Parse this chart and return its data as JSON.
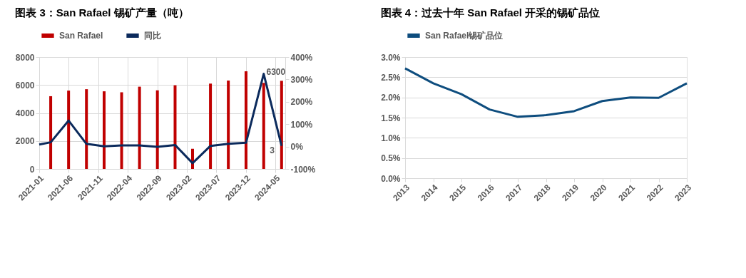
{
  "chart_data": [
    {
      "type": "bar",
      "title": "图表 3：San Rafael 锡矿产量（吨）",
      "xlim": [
        "2021-01-01",
        "2024-06-20"
      ],
      "xticks": [
        "2021-01",
        "2021-06",
        "2021-11",
        "2022-04",
        "2022-09",
        "2023-02",
        "2023-07",
        "2023-12",
        "2024-05"
      ],
      "series": [
        {
          "name": "San Rafael",
          "type": "bar",
          "color": "#c00000",
          "x": [
            "2021-03",
            "2021-06",
            "2021-09",
            "2021-12",
            "2022-03",
            "2022-06",
            "2022-09",
            "2022-12",
            "2023-03",
            "2023-06",
            "2023-09",
            "2023-12",
            "2024-03",
            "2024-06"
          ],
          "values": [
            5200,
            5600,
            5700,
            5550,
            5480,
            5880,
            5620,
            5980,
            1440,
            6100,
            6320,
            6980,
            6150,
            6300
          ],
          "value_labels": [
            null,
            null,
            null,
            null,
            null,
            null,
            null,
            null,
            null,
            null,
            null,
            null,
            null,
            "6300"
          ]
        },
        {
          "name": "同比",
          "type": "line",
          "axis": "y2",
          "color": "#0b2a5c",
          "x": [
            "2021-01",
            "2021-03",
            "2021-06",
            "2021-09",
            "2021-12",
            "2022-03",
            "2022-06",
            "2022-09",
            "2022-12",
            "2023-03",
            "2023-06",
            "2023-09",
            "2023-12",
            "2024-03",
            "2024-06"
          ],
          "values": [
            9,
            19,
            116,
            12,
            1,
            5,
            5,
            -1,
            7,
            -74,
            3,
            12,
            17,
            325,
            3
          ],
          "value_labels": [
            null,
            null,
            null,
            null,
            null,
            null,
            null,
            null,
            null,
            null,
            null,
            null,
            null,
            null,
            "3"
          ]
        }
      ],
      "ylim": [
        0,
        8000
      ],
      "yticks": [
        0,
        2000,
        4000,
        6000,
        8000
      ],
      "y2lim": [
        -100,
        400
      ],
      "y2ticks": [
        {
          "value": -100,
          "label": "-100%"
        },
        {
          "value": 0,
          "label": "0%"
        },
        {
          "value": 100,
          "label": "100%"
        },
        {
          "value": 200,
          "label": "200%"
        },
        {
          "value": 300,
          "label": "300%"
        },
        {
          "value": 400,
          "label": "400%"
        }
      ],
      "grid": true,
      "legend": "top"
    },
    {
      "type": "line",
      "title": "图表 4：过去十年 San Rafael 开采的锡矿品位",
      "categories": [
        "2013",
        "2014",
        "2015",
        "2016",
        "2017",
        "2018",
        "2019",
        "2020",
        "2021",
        "2022",
        "2023"
      ],
      "series": [
        {
          "name": "San Rafael锡矿品位",
          "color": "#0e4d7e",
          "values": [
            2.72,
            2.35,
            2.08,
            1.7,
            1.52,
            1.56,
            1.66,
            1.91,
            2.0,
            1.99,
            2.35
          ]
        }
      ],
      "ylim": [
        0,
        3
      ],
      "yticks": [
        {
          "value": 0,
          "label": "0.0%"
        },
        {
          "value": 0.5,
          "label": "0.5%"
        },
        {
          "value": 1,
          "label": "1.0%"
        },
        {
          "value": 1.5,
          "label": "1.5%"
        },
        {
          "value": 2,
          "label": "2.0%"
        },
        {
          "value": 2.5,
          "label": "2.5%"
        },
        {
          "value": 3,
          "label": "3.0%"
        }
      ],
      "grid": "y",
      "legend": "top"
    }
  ]
}
